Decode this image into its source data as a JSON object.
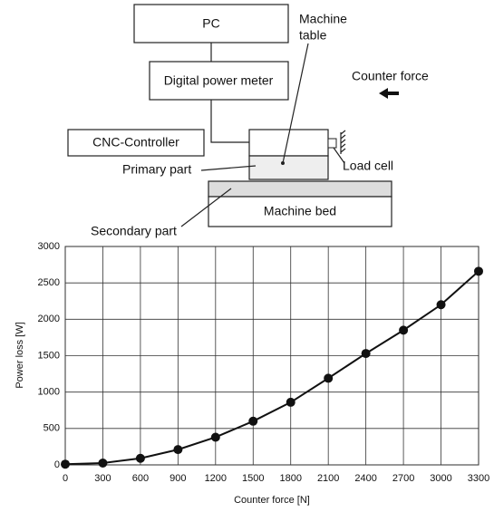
{
  "diagram": {
    "pc": "PC",
    "meter": "Digital power meter",
    "machine_table": [
      "Machine",
      "table"
    ],
    "counter_force": "Counter force",
    "cnc": "CNC-Controller",
    "load_cell": "Load cell",
    "primary": "Primary part",
    "bed": "Machine bed",
    "secondary": "Secondary part"
  },
  "chart_data": {
    "type": "line",
    "xlabel": "Counter force [N]",
    "ylabel": "Power loss [W]",
    "x": [
      0,
      300,
      600,
      900,
      1200,
      1500,
      1800,
      2100,
      2400,
      2700,
      3000,
      3300
    ],
    "values": [
      10,
      25,
      90,
      210,
      380,
      600,
      860,
      1190,
      1530,
      1850,
      2200,
      2660
    ],
    "color": "#111111",
    "xlim": [
      0,
      3300
    ],
    "xticks": [
      0,
      300,
      600,
      900,
      1200,
      1500,
      1800,
      2100,
      2400,
      2700,
      3000,
      3300
    ],
    "ylim": [
      0,
      3000
    ],
    "yticks": [
      0,
      500,
      1000,
      1500,
      2000,
      2500,
      3000
    ],
    "grid": true
  }
}
